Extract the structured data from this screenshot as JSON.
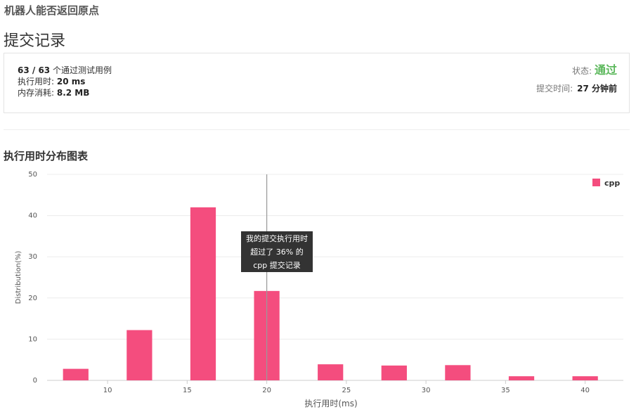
{
  "problem_title": "机器人能否返回原点",
  "page_title": "提交记录",
  "submission": {
    "passed_cases": "63 / 63",
    "passed_label": "个通过测试用例",
    "runtime_label": "执行用时:",
    "runtime_value": "20 ms",
    "memory_label": "内存消耗:",
    "memory_value": "8.2 MB",
    "status_label": "状态:",
    "status_value": "通过",
    "submit_time_label": "提交时间:",
    "submit_time_value": "27 分钟前"
  },
  "section_title": "执行用时分布图表",
  "tooltip": {
    "line1": "我的提交执行用时",
    "line2": "超过了 36% 的",
    "line3": "cpp 提交记录"
  },
  "colors": {
    "bar": "#f44d7e",
    "status": "#5cb85c"
  },
  "chart_data": {
    "type": "bar",
    "xlabel": "执行用时(ms)",
    "ylabel": "Distribution(%)",
    "x": [
      8,
      12,
      16,
      20,
      24,
      28,
      32,
      36,
      40
    ],
    "series": [
      {
        "name": "cpp",
        "values": [
          2.8,
          12.2,
          42.0,
          21.7,
          3.9,
          3.6,
          3.7,
          1.0,
          1.0
        ]
      }
    ],
    "xlim": [
      6.2,
      42.4
    ],
    "ylim": [
      0,
      50
    ],
    "yticks": [
      0,
      10,
      20,
      30,
      40,
      50
    ],
    "xticks": [
      10,
      15,
      20,
      25,
      30,
      35,
      40
    ],
    "bar_width_units": 1.6,
    "marker_x": 20,
    "legend": "top-right",
    "grid": true
  }
}
